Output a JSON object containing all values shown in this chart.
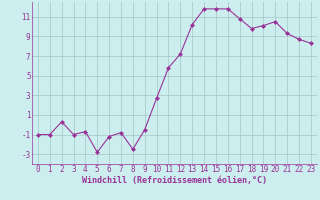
{
  "x": [
    0,
    1,
    2,
    3,
    4,
    5,
    6,
    7,
    8,
    9,
    10,
    11,
    12,
    13,
    14,
    15,
    16,
    17,
    18,
    19,
    20,
    21,
    22,
    23
  ],
  "y": [
    -1,
    -1,
    0.3,
    -1,
    -0.7,
    -2.8,
    -1.2,
    -0.8,
    -2.5,
    -0.5,
    2.7,
    5.8,
    7.2,
    10.2,
    11.8,
    11.8,
    11.8,
    10.8,
    9.8,
    10.1,
    10.5,
    9.3,
    8.7,
    8.3
  ],
  "line_color": "#993399",
  "marker": "D",
  "marker_size": 2,
  "bg_color": "#cceeee",
  "grid_color": "#aacccc",
  "xlabel": "Windchill (Refroidissement éolien,°C)",
  "xlim": [
    -0.5,
    23.5
  ],
  "ylim": [
    -4,
    12.5
  ],
  "yticks": [
    -3,
    -1,
    1,
    3,
    5,
    7,
    9,
    11
  ],
  "xticks": [
    0,
    1,
    2,
    3,
    4,
    5,
    6,
    7,
    8,
    9,
    10,
    11,
    12,
    13,
    14,
    15,
    16,
    17,
    18,
    19,
    20,
    21,
    22,
    23
  ],
  "tick_fontsize": 5.5,
  "xlabel_fontsize": 6.0
}
